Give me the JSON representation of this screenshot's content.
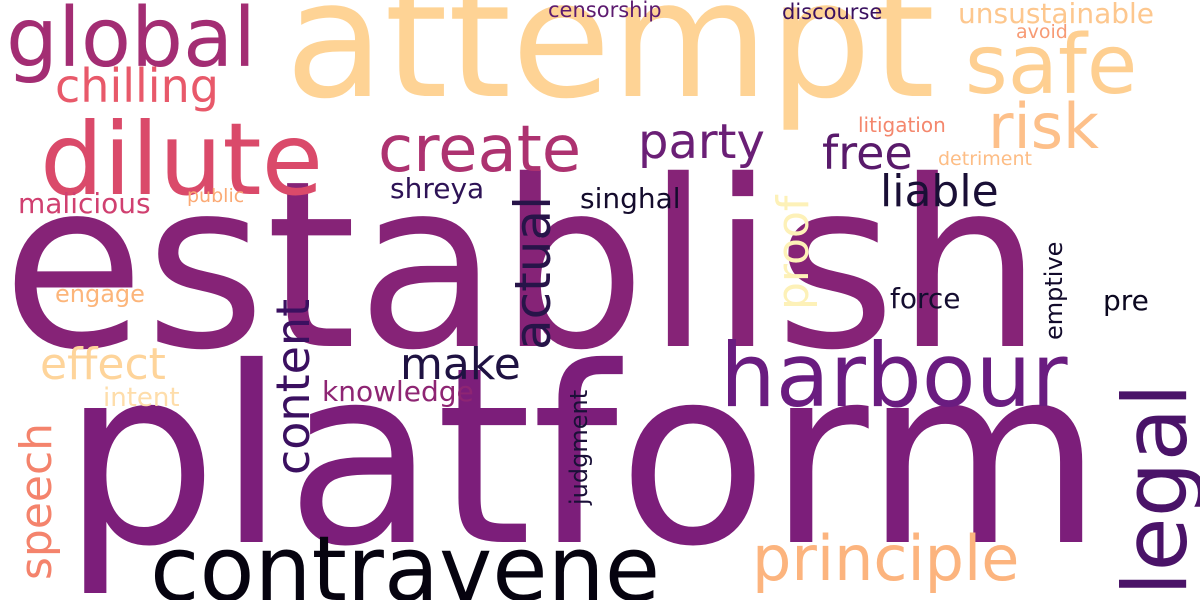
{
  "word_cloud": {
    "words": [
      {
        "text": "establish",
        "color": "#862377"
      },
      {
        "text": "platform",
        "color": "#7c1e7a"
      },
      {
        "text": "attempt",
        "color": "#fed395"
      },
      {
        "text": "contravene",
        "color": "#06030f"
      },
      {
        "text": "harbour",
        "color": "#6a1c80"
      },
      {
        "text": "dilute",
        "color": "#da4a6a"
      },
      {
        "text": "global",
        "color": "#a32d73"
      },
      {
        "text": "safe",
        "color": "#fecf91"
      },
      {
        "text": "principle",
        "color": "#fcb47e"
      },
      {
        "text": "create",
        "color": "#ad3270"
      },
      {
        "text": "risk",
        "color": "#fdc08a"
      },
      {
        "text": "chilling",
        "color": "#e8596a"
      },
      {
        "text": "effect",
        "color": "#fed49a"
      },
      {
        "text": "party",
        "color": "#6b1f76"
      },
      {
        "text": "free",
        "color": "#591a6b"
      },
      {
        "text": "liable",
        "color": "#1a0f36"
      },
      {
        "text": "make",
        "color": "#1f1242"
      },
      {
        "text": "unsustainable",
        "color": "#fdc78e"
      },
      {
        "text": "malicious",
        "color": "#d04070"
      },
      {
        "text": "shreya",
        "color": "#2e1356"
      },
      {
        "text": "singhal",
        "color": "#140b2c"
      },
      {
        "text": "force",
        "color": "#150d30"
      },
      {
        "text": "pre",
        "color": "#0c0820"
      },
      {
        "text": "knowledge",
        "color": "#8e2573"
      },
      {
        "text": "engage",
        "color": "#fcb57a"
      },
      {
        "text": "intent",
        "color": "#feddaa"
      },
      {
        "text": "litigation",
        "color": "#f4876d"
      },
      {
        "text": "detriment",
        "color": "#fdbd85"
      },
      {
        "text": "public",
        "color": "#fbaa75"
      },
      {
        "text": "censorship",
        "color": "#5d1b70"
      },
      {
        "text": "discourse",
        "color": "#3a1160"
      },
      {
        "text": "avoid",
        "color": "#f79b75"
      }
    ],
    "rotated_words": [
      {
        "text": "legal",
        "color": "#4a1368"
      },
      {
        "text": "content",
        "color": "#3b1060"
      },
      {
        "text": "actual",
        "color": "#271449"
      },
      {
        "text": "proof",
        "color": "#fdf1b8"
      },
      {
        "text": "speech",
        "color": "#f4836c"
      },
      {
        "text": "emptive",
        "color": "#120a2b"
      },
      {
        "text": "judgment",
        "color": "#1a1038"
      }
    ]
  }
}
